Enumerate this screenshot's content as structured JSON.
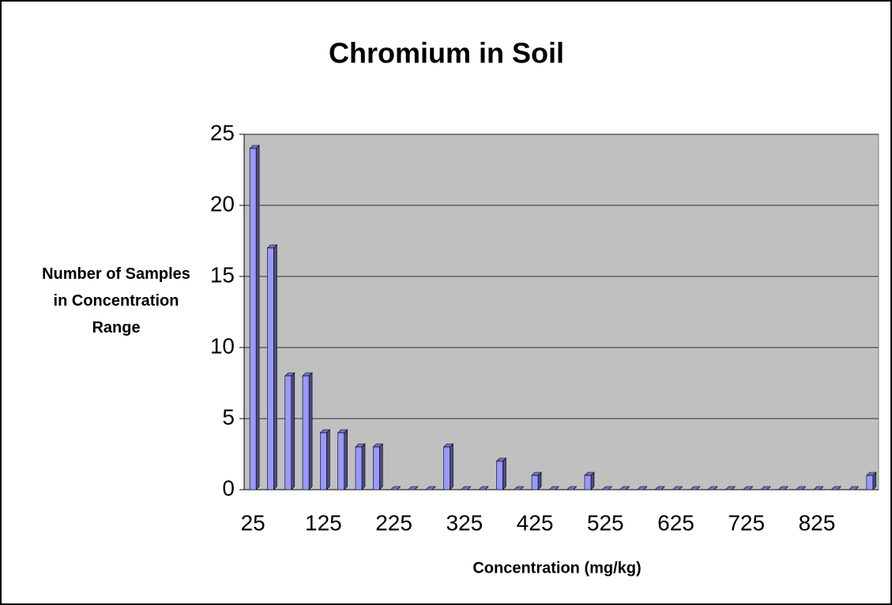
{
  "chart_data": {
    "type": "bar",
    "title": "Chromium in Soil",
    "x_label": "Concentration (mg/kg)",
    "y_label": "Number of Samples in Concentration Range",
    "categories": [
      "25",
      null,
      null,
      null,
      "125",
      null,
      null,
      null,
      "225",
      null,
      null,
      null,
      "325",
      null,
      null,
      null,
      "425",
      null,
      null,
      null,
      "525",
      null,
      null,
      null,
      "625",
      null,
      null,
      null,
      "725",
      null,
      null,
      null,
      "825",
      null,
      null,
      null
    ],
    "values": [
      24,
      17,
      8,
      8,
      4,
      4,
      3,
      3,
      0,
      0,
      0,
      3,
      0,
      0,
      2,
      0,
      1,
      0,
      0,
      1,
      0,
      0,
      0,
      0,
      0,
      0,
      0,
      0,
      0,
      0,
      0,
      0,
      0,
      0,
      0,
      1
    ],
    "color": "#9999ff",
    "ylim": [
      0,
      25
    ],
    "yticks": [
      0,
      5,
      10,
      15,
      20,
      25
    ],
    "grid": true
  }
}
